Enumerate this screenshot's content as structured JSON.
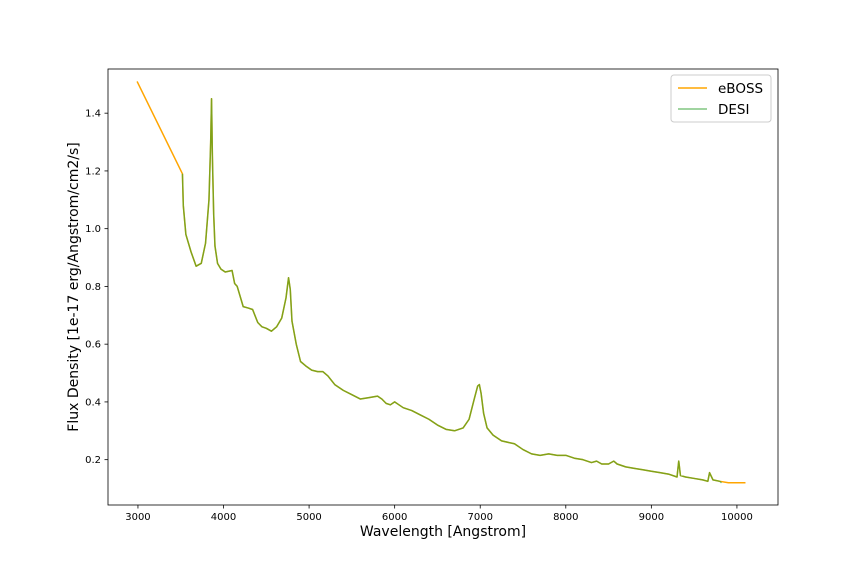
{
  "chart_data": {
    "type": "line",
    "title": "",
    "xlabel": "Wavelength [Angstrom]",
    "ylabel": "Flux Density [1e-17 erg/Angstrom/cm2/s]",
    "xlim": [
      2650,
      10480
    ],
    "ylim": [
      0.043,
      1.553
    ],
    "grid": false,
    "legend_position": "top-right",
    "x_ticks": [
      3000,
      4000,
      5000,
      6000,
      7000,
      8000,
      9000,
      10000
    ],
    "x_tick_labels": [
      "3000",
      "4000",
      "5000",
      "6000",
      "7000",
      "8000",
      "9000",
      "10000"
    ],
    "y_ticks": [
      0.2,
      0.4,
      0.6,
      0.8,
      1.0,
      1.2,
      1.4
    ],
    "y_tick_labels": [
      "0.2",
      "0.4",
      "0.6",
      "0.8",
      "1.0",
      "1.2",
      "1.4"
    ],
    "series": [
      {
        "name": "eBOSS",
        "color": "#ffa500",
        "x": [
          2990,
          3520,
          3530,
          3560,
          3620,
          3680,
          3740,
          3790,
          3830,
          3850,
          3860,
          3870,
          3885,
          3900,
          3930,
          3970,
          4020,
          4100,
          4130,
          4160,
          4230,
          4290,
          4340,
          4400,
          4450,
          4500,
          4560,
          4620,
          4680,
          4730,
          4760,
          4780,
          4800,
          4850,
          4900,
          4960,
          5030,
          5100,
          5160,
          5220,
          5300,
          5400,
          5500,
          5600,
          5700,
          5800,
          5850,
          5900,
          5950,
          6000,
          6050,
          6100,
          6200,
          6300,
          6400,
          6500,
          6600,
          6700,
          6800,
          6870,
          6930,
          6970,
          6990,
          7010,
          7040,
          7080,
          7150,
          7250,
          7400,
          7500,
          7600,
          7700,
          7800,
          7900,
          8000,
          8100,
          8200,
          8300,
          8360,
          8420,
          8500,
          8560,
          8600,
          8700,
          8800,
          8900,
          9000,
          9100,
          9200,
          9300,
          9320,
          9340,
          9400,
          9500,
          9600,
          9660,
          9680,
          9720,
          9800,
          9900,
          10000,
          10100
        ],
        "values": [
          1.51,
          1.19,
          1.08,
          0.98,
          0.92,
          0.87,
          0.88,
          0.95,
          1.1,
          1.3,
          1.45,
          1.25,
          1.05,
          0.94,
          0.88,
          0.86,
          0.85,
          0.855,
          0.81,
          0.8,
          0.73,
          0.725,
          0.72,
          0.675,
          0.66,
          0.655,
          0.645,
          0.66,
          0.69,
          0.76,
          0.83,
          0.79,
          0.68,
          0.6,
          0.54,
          0.525,
          0.51,
          0.505,
          0.505,
          0.49,
          0.46,
          0.44,
          0.425,
          0.41,
          0.415,
          0.42,
          0.41,
          0.395,
          0.39,
          0.4,
          0.39,
          0.38,
          0.37,
          0.355,
          0.34,
          0.32,
          0.305,
          0.3,
          0.31,
          0.34,
          0.41,
          0.455,
          0.46,
          0.43,
          0.36,
          0.31,
          0.285,
          0.265,
          0.255,
          0.235,
          0.22,
          0.215,
          0.22,
          0.215,
          0.215,
          0.205,
          0.2,
          0.19,
          0.195,
          0.185,
          0.185,
          0.195,
          0.185,
          0.175,
          0.17,
          0.165,
          0.16,
          0.155,
          0.15,
          0.14,
          0.195,
          0.145,
          0.14,
          0.135,
          0.13,
          0.125,
          0.155,
          0.13,
          0.125,
          0.12,
          0.12,
          0.12
        ]
      },
      {
        "name": "DESI",
        "color": "#2ca02c",
        "x": [
          3520,
          3530,
          3560,
          3620,
          3680,
          3740,
          3790,
          3830,
          3850,
          3860,
          3870,
          3885,
          3900,
          3930,
          3970,
          4020,
          4100,
          4130,
          4160,
          4230,
          4290,
          4340,
          4400,
          4450,
          4500,
          4560,
          4620,
          4680,
          4730,
          4760,
          4780,
          4800,
          4850,
          4900,
          4960,
          5030,
          5100,
          5160,
          5220,
          5300,
          5400,
          5500,
          5600,
          5700,
          5800,
          5850,
          5900,
          5950,
          6000,
          6050,
          6100,
          6200,
          6300,
          6400,
          6500,
          6600,
          6700,
          6800,
          6870,
          6930,
          6970,
          6990,
          7010,
          7040,
          7080,
          7150,
          7250,
          7400,
          7500,
          7600,
          7700,
          7800,
          7900,
          8000,
          8100,
          8200,
          8300,
          8360,
          8420,
          8500,
          8560,
          8600,
          8700,
          8800,
          8900,
          9000,
          9100,
          9200,
          9300,
          9320,
          9340,
          9400,
          9500,
          9600,
          9660,
          9680,
          9720,
          9800,
          9820
        ],
        "values": [
          1.19,
          1.08,
          0.98,
          0.92,
          0.87,
          0.88,
          0.95,
          1.1,
          1.3,
          1.45,
          1.25,
          1.05,
          0.94,
          0.88,
          0.86,
          0.85,
          0.855,
          0.81,
          0.8,
          0.73,
          0.725,
          0.72,
          0.675,
          0.66,
          0.655,
          0.645,
          0.66,
          0.69,
          0.76,
          0.83,
          0.79,
          0.68,
          0.6,
          0.54,
          0.525,
          0.51,
          0.505,
          0.505,
          0.49,
          0.46,
          0.44,
          0.425,
          0.41,
          0.415,
          0.42,
          0.41,
          0.395,
          0.39,
          0.4,
          0.39,
          0.38,
          0.37,
          0.355,
          0.34,
          0.32,
          0.305,
          0.3,
          0.31,
          0.34,
          0.41,
          0.455,
          0.46,
          0.43,
          0.36,
          0.31,
          0.285,
          0.265,
          0.255,
          0.235,
          0.22,
          0.215,
          0.22,
          0.215,
          0.215,
          0.205,
          0.2,
          0.19,
          0.195,
          0.185,
          0.185,
          0.195,
          0.185,
          0.175,
          0.17,
          0.165,
          0.16,
          0.155,
          0.15,
          0.14,
          0.195,
          0.145,
          0.14,
          0.135,
          0.13,
          0.125,
          0.155,
          0.13,
          0.125,
          0.12
        ]
      }
    ]
  }
}
